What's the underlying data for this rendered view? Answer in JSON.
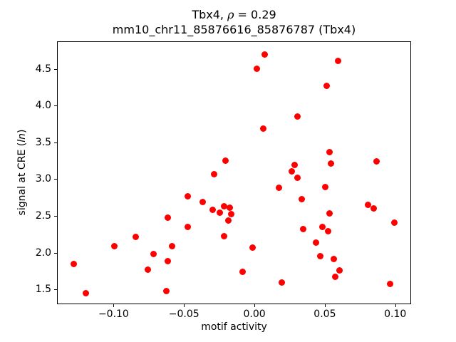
{
  "figure": {
    "title": {
      "prefix": "Tbx4, ",
      "rho": "ρ",
      "suffix": " = 0.29"
    },
    "subtitle": "mm10_chr11_85876616_85876787 (Tbx4)",
    "xlabel": "motif activity",
    "ylabel": {
      "prefix": "signal at CRE (",
      "italic": "ln",
      "suffix": ")"
    }
  },
  "chart_data": {
    "type": "scatter",
    "title": "Tbx4, ρ = 0.29",
    "subtitle": "mm10_chr11_85876616_85876787 (Tbx4)",
    "xlabel": "motif activity",
    "ylabel": "signal at CRE (ln)",
    "xlim": [
      -0.1402,
      0.1113
    ],
    "ylim": [
      1.297,
      4.876
    ],
    "xticks": [
      -0.1,
      -0.05,
      0.0,
      0.05,
      0.1
    ],
    "xtick_labels": [
      "−0.10",
      "−0.05",
      "0.00",
      "0.05",
      "0.10"
    ],
    "yticks": [
      1.5,
      2.0,
      2.5,
      3.0,
      3.5,
      4.0,
      4.5
    ],
    "ytick_labels": [
      "1.5",
      "2.0",
      "2.5",
      "3.0",
      "3.5",
      "4.0",
      "4.5"
    ],
    "marker_color": "#ff0000",
    "marker_diameter_px": 9,
    "grid": false,
    "legend": null,
    "points": [
      [
        0.007,
        4.71
      ],
      [
        0.001,
        4.51
      ],
      [
        0.059,
        4.62
      ],
      [
        0.051,
        4.28
      ],
      [
        0.03,
        3.86
      ],
      [
        0.006,
        3.7
      ],
      [
        0.053,
        3.38
      ],
      [
        -0.021,
        3.26
      ],
      [
        0.086,
        3.25
      ],
      [
        0.054,
        3.22
      ],
      [
        0.028,
        3.2
      ],
      [
        0.026,
        3.12
      ],
      [
        -0.029,
        3.08
      ],
      [
        0.03,
        3.03
      ],
      [
        0.05,
        2.9
      ],
      [
        0.017,
        2.89
      ],
      [
        -0.048,
        2.78
      ],
      [
        0.033,
        2.74
      ],
      [
        -0.037,
        2.7
      ],
      [
        0.08,
        2.66
      ],
      [
        -0.022,
        2.64
      ],
      [
        -0.018,
        2.62
      ],
      [
        0.084,
        2.61
      ],
      [
        -0.03,
        2.59
      ],
      [
        -0.025,
        2.55
      ],
      [
        0.053,
        2.54
      ],
      [
        -0.017,
        2.53
      ],
      [
        -0.062,
        2.49
      ],
      [
        -0.019,
        2.45
      ],
      [
        0.099,
        2.42
      ],
      [
        -0.048,
        2.36
      ],
      [
        0.048,
        2.36
      ],
      [
        0.034,
        2.33
      ],
      [
        0.052,
        2.3
      ],
      [
        -0.022,
        2.23
      ],
      [
        -0.085,
        2.22
      ],
      [
        0.043,
        2.15
      ],
      [
        -0.1,
        2.1
      ],
      [
        -0.059,
        2.1
      ],
      [
        -0.002,
        2.08
      ],
      [
        -0.072,
        1.99
      ],
      [
        0.046,
        1.96
      ],
      [
        0.056,
        1.92
      ],
      [
        -0.062,
        1.89
      ],
      [
        -0.129,
        1.86
      ],
      [
        -0.076,
        1.78
      ],
      [
        0.06,
        1.77
      ],
      [
        -0.009,
        1.75
      ],
      [
        0.057,
        1.68
      ],
      [
        0.019,
        1.6
      ],
      [
        0.096,
        1.58
      ],
      [
        -0.063,
        1.49
      ],
      [
        -0.12,
        1.46
      ]
    ]
  }
}
